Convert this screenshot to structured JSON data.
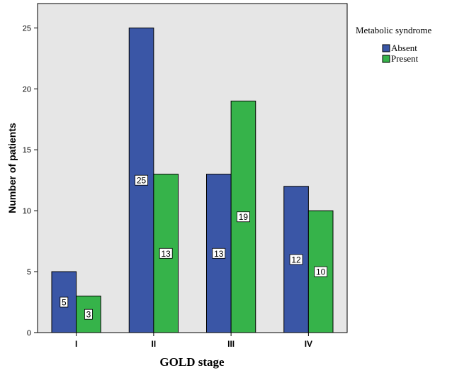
{
  "chart_data": {
    "type": "bar",
    "xlabel": "GOLD stage",
    "ylabel": "Number of patients",
    "categories": [
      "I",
      "II",
      "III",
      "IV"
    ],
    "ylim": [
      0,
      27
    ],
    "yticks": [
      0,
      5,
      10,
      15,
      20,
      25
    ],
    "grid": false,
    "legend": {
      "title": "Metabolic syndrome",
      "placement": "right"
    },
    "series": [
      {
        "name": "Absent",
        "color": "#3a56a6",
        "values": [
          5,
          25,
          13,
          12
        ]
      },
      {
        "name": "Present",
        "color": "#36b34a",
        "values": [
          3,
          13,
          19,
          10
        ]
      }
    ]
  }
}
